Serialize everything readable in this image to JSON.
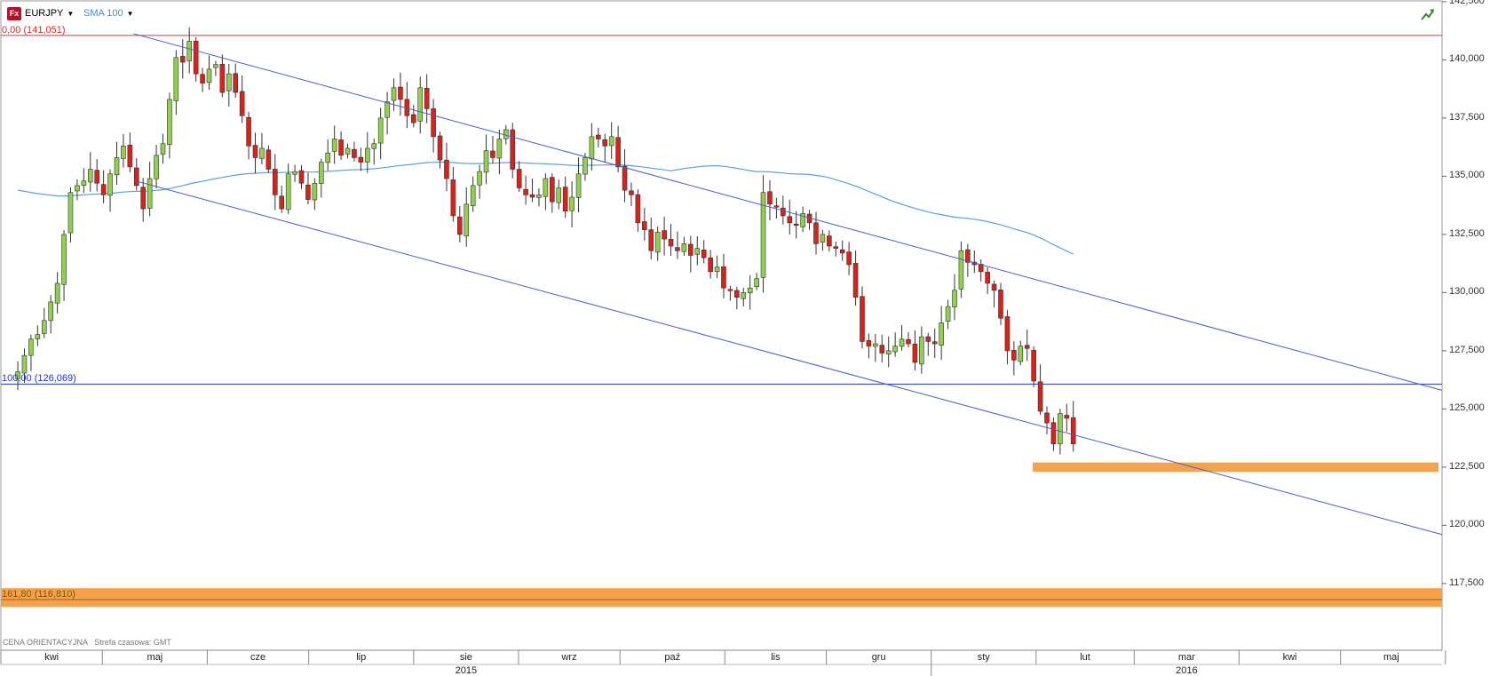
{
  "toolbar": {
    "icon_text": "Fx",
    "symbol": "EURJPY",
    "indicator": "SMA 100"
  },
  "footer": {
    "price_type": "CENA ORIENTACYJNA",
    "timezone": "Strefa czasowa: GMT"
  },
  "colors": {
    "bull": "#8fd14f",
    "bear": "#d9221c",
    "sma": "#5aa0e0",
    "channel": "#4a5cc5",
    "fib_top": "#e03030",
    "fib_bottom": "#2233cc",
    "zone": "#f7a24a"
  },
  "chart_data": {
    "type": "candlestick",
    "symbol": "EURJPY",
    "ylim": [
      115.0,
      143.0
    ],
    "y_ticks": [
      "142,500",
      "140,000",
      "137,500",
      "135,000",
      "132,500",
      "130,000",
      "127,500",
      "125,000",
      "122,500",
      "120,000",
      "117,500"
    ],
    "months": [
      "kwi",
      "maj",
      "cze",
      "lip",
      "sie",
      "wrz",
      "paź",
      "lis",
      "gru",
      "sty",
      "lut",
      "mar",
      "kwi",
      "maj"
    ],
    "years": [
      "2015",
      "2016"
    ],
    "fib_levels": [
      {
        "label": "0,00 (141,051)",
        "value": 141.051
      },
      {
        "label": "100,00 (126,069)",
        "value": 126.069
      },
      {
        "label": "161,80 (116,810)",
        "value": 116.81
      }
    ],
    "support_zone": {
      "low": 122.3,
      "high": 122.7
    },
    "target_zone": {
      "low": 116.5,
      "high": 117.3
    },
    "channel_lines": [
      {
        "from": [
          "2015-05-26",
          140.5
        ],
        "to": [
          "2016-05-26",
          126.0
        ]
      },
      {
        "from": [
          "2015-05-26",
          134.2
        ],
        "to": [
          "2016-05-26",
          119.8
        ]
      }
    ],
    "closes": [
      126.6,
      127.3,
      128.0,
      128.2,
      128.8,
      129.6,
      130.4,
      132.5,
      134.3,
      134.6,
      134.8,
      135.3,
      134.7,
      134.2,
      135.1,
      135.8,
      136.3,
      135.4,
      134.6,
      133.6,
      134.9,
      135.9,
      136.4,
      138.3,
      140.1,
      139.9,
      140.8,
      139.4,
      139.0,
      139.6,
      139.8,
      138.6,
      139.4,
      138.6,
      137.6,
      136.3,
      135.8,
      136.2,
      135.3,
      134.2,
      133.6,
      135.1,
      135.2,
      134.7,
      134.0,
      134.7,
      135.6,
      136.0,
      136.6,
      135.9,
      136.2,
      135.8,
      135.6,
      136.2,
      136.4,
      137.5,
      138.2,
      138.8,
      138.3,
      137.6,
      137.3,
      138.8,
      137.9,
      136.7,
      135.7,
      134.9,
      133.3,
      132.5,
      133.8,
      134.6,
      135.2,
      136.1,
      135.8,
      136.6,
      137.0,
      135.3,
      134.5,
      134.2,
      134.1,
      134.2,
      134.9,
      133.9,
      134.5,
      133.5,
      134.1,
      135.1,
      135.8,
      136.7,
      136.6,
      136.3,
      136.7,
      135.4,
      134.4,
      134.2,
      133.0,
      132.7,
      131.8,
      132.6,
      132.3,
      132.0,
      131.8,
      132.1,
      131.6,
      131.9,
      131.5,
      130.9,
      131.1,
      130.2,
      130.1,
      129.8,
      130.0,
      130.2,
      130.6,
      134.3,
      133.8,
      133.7,
      133.3,
      133.0,
      132.9,
      133.4,
      133.0,
      132.1,
      132.5,
      132.0,
      131.9,
      131.7,
      131.2,
      129.8,
      127.9,
      127.7,
      127.8,
      127.4,
      127.5,
      127.7,
      128.0,
      127.8,
      127.0,
      128.1,
      127.9,
      127.8,
      128.7,
      129.4,
      130.1,
      131.8,
      131.3,
      131.2,
      130.9,
      130.4,
      130.1,
      128.9,
      127.5,
      127.1,
      127.7,
      127.6,
      126.2,
      124.9,
      124.4,
      123.5,
      124.8,
      124.6,
      123.5
    ]
  }
}
